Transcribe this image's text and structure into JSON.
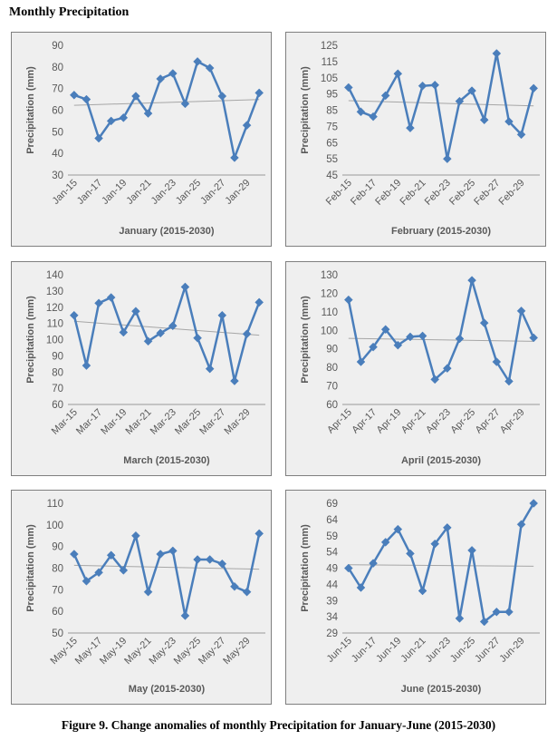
{
  "heading": "Monthly Precipitation",
  "caption": "Figure 9. Change anomalies of monthly Precipitation for January-June (2015-2030)",
  "series_color": "#4a7ebb",
  "trend_color": "#a6a6a6",
  "chart_data": [
    {
      "type": "line",
      "title": "",
      "xlabel": "January (2015-2030)",
      "ylabel": "Precipitation (mm)",
      "ylim": [
        30,
        90
      ],
      "yticks": [
        30,
        40,
        50,
        60,
        70,
        80,
        90
      ],
      "xtick_labels": [
        "Jan-15",
        "Jan-17",
        "Jan-19",
        "Jan-21",
        "Jan-23",
        "Jan-25",
        "Jan-27",
        "Jan-29"
      ],
      "categories": [
        "Jan-15",
        "Jan-16",
        "Jan-17",
        "Jan-18",
        "Jan-19",
        "Jan-20",
        "Jan-21",
        "Jan-22",
        "Jan-23",
        "Jan-24",
        "Jan-25",
        "Jan-26",
        "Jan-27",
        "Jan-28",
        "Jan-29",
        "Jan-30"
      ],
      "values": [
        67,
        65,
        47,
        55,
        56.5,
        66.5,
        58.5,
        74.5,
        77,
        63,
        82.5,
        79.5,
        66.5,
        38,
        53,
        68
      ],
      "trendline": true,
      "grid": false
    },
    {
      "type": "line",
      "title": "",
      "xlabel": "February (2015-2030)",
      "ylabel": "Precipitation (mm)",
      "ylim": [
        45,
        125
      ],
      "yticks": [
        45,
        55,
        65,
        75,
        85,
        95,
        105,
        115,
        125
      ],
      "xtick_labels": [
        "Feb-15",
        "Feb-17",
        "Feb-19",
        "Feb-21",
        "Feb-23",
        "Feb-25",
        "Feb-27",
        "Feb-29"
      ],
      "categories": [
        "Feb-15",
        "Feb-16",
        "Feb-17",
        "Feb-18",
        "Feb-19",
        "Feb-20",
        "Feb-21",
        "Feb-22",
        "Feb-23",
        "Feb-24",
        "Feb-25",
        "Feb-26",
        "Feb-27",
        "Feb-28",
        "Feb-29",
        "Feb-30"
      ],
      "values": [
        99,
        84,
        81,
        94,
        107.5,
        74,
        100,
        100.5,
        55,
        90.5,
        97,
        79,
        120,
        78,
        70,
        98.5
      ],
      "trendline": true,
      "grid": false
    },
    {
      "type": "line",
      "title": "",
      "xlabel": "March (2015-2030)",
      "ylabel": "Precipitation (mm)",
      "ylim": [
        60,
        140
      ],
      "yticks": [
        60,
        70,
        80,
        90,
        100,
        110,
        120,
        130,
        140
      ],
      "xtick_labels": [
        "Mar-15",
        "Mar-17",
        "Mar-19",
        "Mar-21",
        "Mar-23",
        "Mar-25",
        "Mar-27",
        "Mar-29"
      ],
      "categories": [
        "Mar-15",
        "Mar-16",
        "Mar-17",
        "Mar-18",
        "Mar-19",
        "Mar-20",
        "Mar-21",
        "Mar-22",
        "Mar-23",
        "Mar-24",
        "Mar-25",
        "Mar-26",
        "Mar-27",
        "Mar-28",
        "Mar-29",
        "Mar-30"
      ],
      "values": [
        115,
        84,
        122.5,
        126,
        104.5,
        117.5,
        99,
        104,
        108.5,
        132.5,
        101,
        82,
        115,
        74.5,
        103.5,
        123
      ],
      "trendline": true,
      "grid": false
    },
    {
      "type": "line",
      "title": "",
      "xlabel": "April (2015-2030)",
      "ylabel": "Precipitation (mm)",
      "ylim": [
        60,
        130
      ],
      "yticks": [
        60,
        70,
        80,
        90,
        100,
        110,
        120,
        130
      ],
      "xtick_labels": [
        "Apr-15",
        "Apr-17",
        "Apr-19",
        "Apr-21",
        "Apr-23",
        "Apr-25",
        "Apr-27",
        "Apr-29"
      ],
      "categories": [
        "Apr-15",
        "Apr-16",
        "Apr-17",
        "Apr-18",
        "Apr-19",
        "Apr-20",
        "Apr-21",
        "Apr-22",
        "Apr-23",
        "Apr-24",
        "Apr-25",
        "Apr-26",
        "Apr-27",
        "Apr-28",
        "Apr-29",
        "Apr-30"
      ],
      "values": [
        116.5,
        83,
        91,
        100.5,
        92,
        96.5,
        97,
        73.5,
        79.5,
        95.5,
        127,
        104,
        83,
        72.5,
        110.5,
        96
      ],
      "trendline": true,
      "grid": false
    },
    {
      "type": "line",
      "title": "",
      "xlabel": "May (2015-2030)",
      "ylabel": "Precipitation (mm)",
      "ylim": [
        50,
        110
      ],
      "yticks": [
        50,
        60,
        70,
        80,
        90,
        100,
        110
      ],
      "xtick_labels": [
        "May-15",
        "May-17",
        "May-19",
        "May-21",
        "May-23",
        "May-25",
        "May-27",
        "May-29"
      ],
      "categories": [
        "May-15",
        "May-16",
        "May-17",
        "May-18",
        "May-19",
        "May-20",
        "May-21",
        "May-22",
        "May-23",
        "May-24",
        "May-25",
        "May-26",
        "May-27",
        "May-28",
        "May-29",
        "May-30"
      ],
      "values": [
        86.5,
        74,
        78,
        86,
        79,
        95,
        69,
        86.5,
        88,
        58,
        84,
        84,
        82,
        71.5,
        69,
        96
      ],
      "trendline": true,
      "grid": false
    },
    {
      "type": "line",
      "title": "",
      "xlabel": "June (2015-2030)",
      "ylabel": "Precipitation (mm)",
      "ylim": [
        29,
        69
      ],
      "yticks": [
        29,
        34,
        39,
        44,
        49,
        54,
        59,
        64,
        69
      ],
      "xtick_labels": [
        "Jun-15",
        "Jun-17",
        "Jun-19",
        "Jun-21",
        "Jun-23",
        "Jun-25",
        "Jun-27",
        "Jun-29"
      ],
      "categories": [
        "Jun-15",
        "Jun-16",
        "Jun-17",
        "Jun-18",
        "Jun-19",
        "Jun-20",
        "Jun-21",
        "Jun-22",
        "Jun-23",
        "Jun-24",
        "Jun-25",
        "Jun-26",
        "Jun-27",
        "Jun-28",
        "Jun-29",
        "Jun-30"
      ],
      "values": [
        49,
        43,
        50.5,
        57,
        61,
        53.5,
        42,
        56.5,
        61.5,
        33.5,
        54.5,
        32.5,
        35.5,
        35.5,
        62.5,
        69
      ],
      "trendline": true,
      "grid": false
    }
  ]
}
